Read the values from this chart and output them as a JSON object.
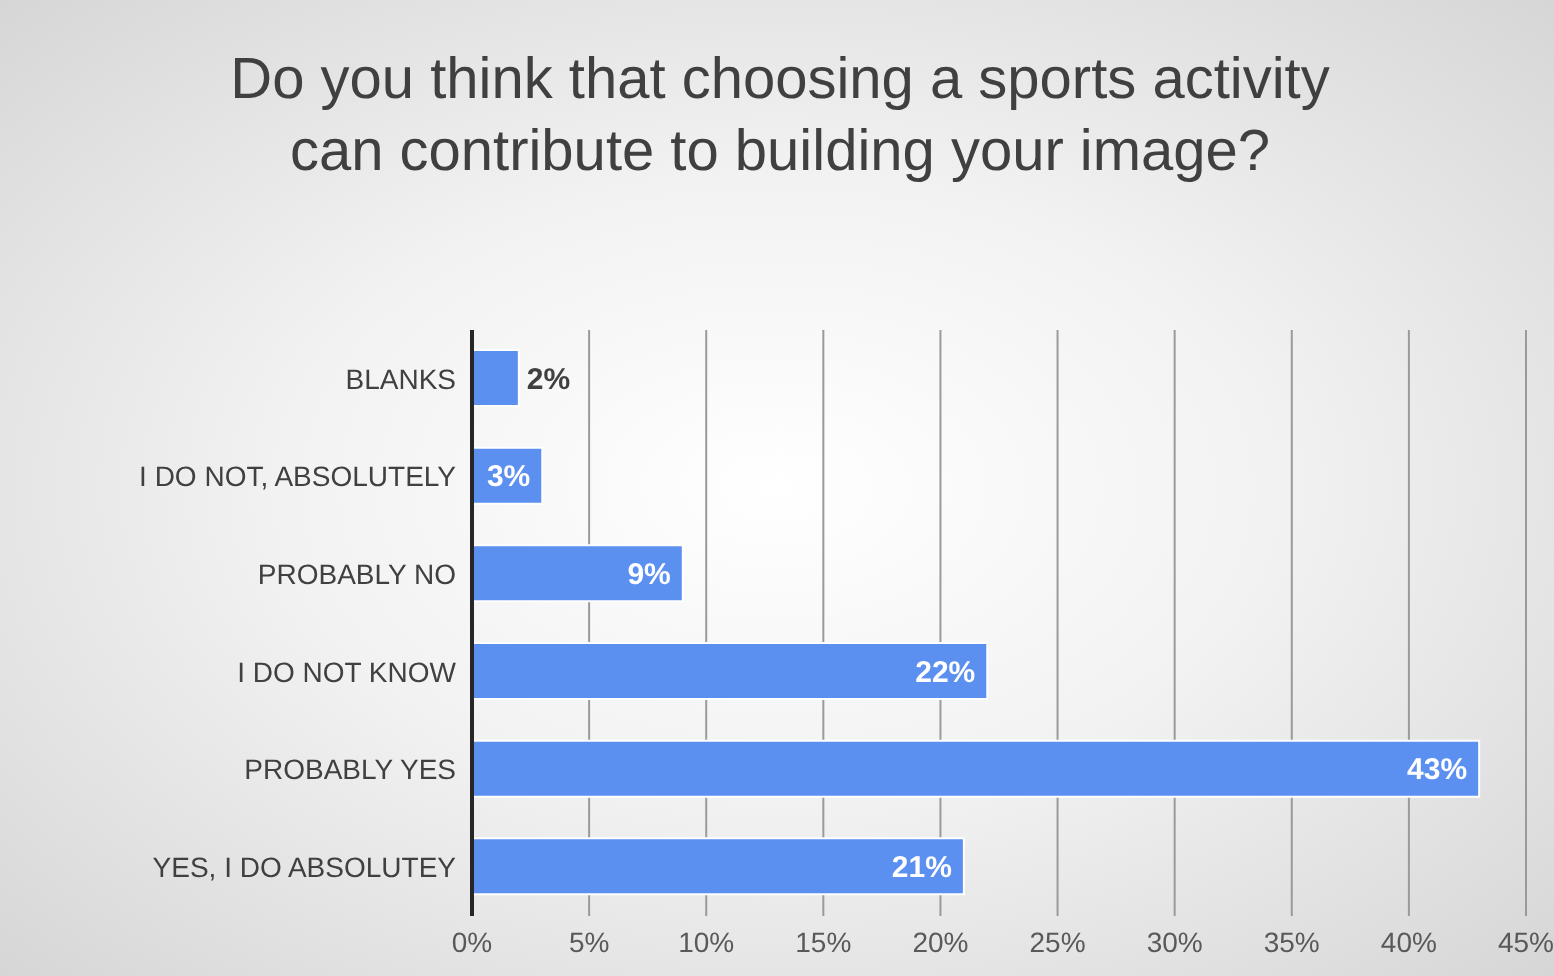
{
  "chart_data": {
    "type": "bar",
    "orientation": "horizontal",
    "title": "Do you think that choosing a sports activity can contribute to building your image?",
    "categories": [
      "BLANKS",
      "I DO NOT, ABSOLUTELY",
      "PROBABLY NO",
      "I DO NOT KNOW",
      "PROBABLY YES",
      "YES, I DO ABSOLUTEY"
    ],
    "values": [
      2,
      3,
      9,
      22,
      43,
      21
    ],
    "value_labels": [
      "2%",
      "3%",
      "9%",
      "22%",
      "43%",
      "21%"
    ],
    "color": "#5b8ff0",
    "xlim": [
      0,
      45
    ],
    "xticks": [
      {
        "value": 0,
        "label": "0%"
      },
      {
        "value": 5,
        "label": "5%"
      },
      {
        "value": 10,
        "label": "10%"
      },
      {
        "value": 15,
        "label": "15%"
      },
      {
        "value": 20,
        "label": "20%"
      },
      {
        "value": 25,
        "label": "25%"
      },
      {
        "value": 30,
        "label": "30%"
      },
      {
        "value": 35,
        "label": "35%"
      },
      {
        "value": 40,
        "label": "40%"
      },
      {
        "value": 45,
        "label": "45%"
      }
    ],
    "grid": "x",
    "legend": false
  }
}
